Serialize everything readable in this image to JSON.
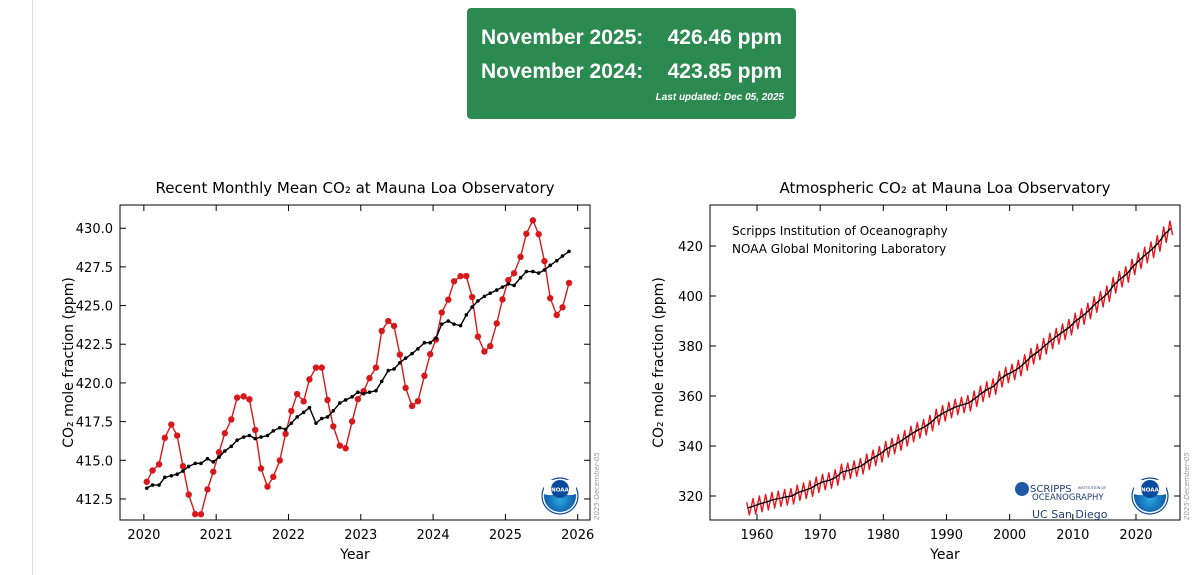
{
  "banner": {
    "rows": [
      {
        "label": "November 2025:",
        "value": "426.46 ppm"
      },
      {
        "label": "November 2024:",
        "value": "423.85 ppm"
      }
    ],
    "updated": "Last updated: Dec 05, 2025"
  },
  "chart_data": [
    {
      "type": "line",
      "title": "Recent Monthly Mean CO₂ at Mauna Loa Observatory",
      "x_label": "Year",
      "y_label": "CO₂ mole fraction (ppm)",
      "stamp": "2025-December-05",
      "logo": "NOAA",
      "xlim": [
        2019.67,
        2026.17
      ],
      "ylim": [
        411.14,
        431.5
      ],
      "xticks": [
        2020,
        2021,
        2022,
        2023,
        2024,
        2025,
        2026
      ],
      "yticks": [
        412.5,
        {
          "value": 415,
          "label": "415.0"
        },
        417.5,
        {
          "value": 420,
          "label": "420.0"
        },
        422.5,
        {
          "value": 425,
          "label": "425.0"
        },
        427.5,
        {
          "value": 430,
          "label": "430.0"
        }
      ],
      "x": [
        2020.04,
        2020.12,
        2020.21,
        2020.29,
        2020.38,
        2020.46,
        2020.54,
        2020.62,
        2020.71,
        2020.79,
        2020.88,
        2020.96,
        2021.04,
        2021.12,
        2021.21,
        2021.29,
        2021.38,
        2021.46,
        2021.54,
        2021.62,
        2021.71,
        2021.79,
        2021.88,
        2021.96,
        2022.04,
        2022.12,
        2022.21,
        2022.29,
        2022.38,
        2022.46,
        2022.54,
        2022.62,
        2022.71,
        2022.79,
        2022.88,
        2022.96,
        2023.04,
        2023.12,
        2023.21,
        2023.29,
        2023.38,
        2023.46,
        2023.54,
        2023.62,
        2023.71,
        2023.79,
        2023.88,
        2023.96,
        2024.04,
        2024.12,
        2024.21,
        2024.29,
        2024.38,
        2024.46,
        2024.54,
        2024.62,
        2024.71,
        2024.79,
        2024.88,
        2024.96,
        2025.04,
        2025.12,
        2025.21,
        2025.29,
        2025.38,
        2025.46,
        2025.54,
        2025.62,
        2025.71,
        2025.79,
        2025.88
      ],
      "series": [
        {
          "color": "#d7191c",
          "marker": "o",
          "values": [
            413.61,
            414.34,
            414.74,
            416.45,
            417.31,
            416.6,
            414.62,
            412.78,
            411.52,
            411.51,
            413.12,
            414.26,
            415.52,
            416.75,
            417.64,
            419.05,
            419.13,
            418.94,
            416.96,
            414.47,
            413.3,
            413.93,
            414.99,
            416.71,
            418.19,
            419.28,
            418.81,
            420.23,
            420.99,
            420.99,
            418.9,
            417.19,
            415.95,
            415.78,
            417.51,
            418.95,
            419.47,
            420.31,
            420.99,
            423.36,
            424.0,
            423.68,
            421.83,
            419.68,
            418.51,
            418.82,
            420.46,
            421.86,
            422.8,
            424.55,
            425.38,
            426.57,
            426.9,
            426.91,
            425.55,
            422.99,
            422.03,
            422.38,
            423.85,
            425.4,
            426.65,
            427.09,
            428.15,
            429.64,
            430.51,
            429.61,
            427.87,
            425.48,
            424.39,
            424.89,
            426.46
          ]
        },
        {
          "color": "#000000",
          "marker": ".",
          "values": [
            413.2,
            413.4,
            413.4,
            413.9,
            414.0,
            414.1,
            414.3,
            414.6,
            414.8,
            414.8,
            415.1,
            414.9,
            415.2,
            415.6,
            415.9,
            416.3,
            416.5,
            416.6,
            416.4,
            416.5,
            416.6,
            416.9,
            417.1,
            417.0,
            417.4,
            417.8,
            418.1,
            418.4,
            417.4,
            417.7,
            417.8,
            418.2,
            418.7,
            418.9,
            419.1,
            419.4,
            419.3,
            419.4,
            419.5,
            420.1,
            420.8,
            420.9,
            421.3,
            421.6,
            421.9,
            422.2,
            422.6,
            422.6,
            422.9,
            423.8,
            424.0,
            423.8,
            423.7,
            424.4,
            424.9,
            425.3,
            425.6,
            425.8,
            426.0,
            426.2,
            426.4,
            426.3,
            426.8,
            427.2,
            427.2,
            427.1,
            427.3,
            427.6,
            427.9,
            428.2,
            428.5
          ]
        }
      ]
    },
    {
      "type": "line",
      "title": "Atmospheric CO₂ at Mauna Loa Observatory",
      "x_label": "Year",
      "y_label": "CO₂ mole fraction (ppm)",
      "stamp": "2025-December-05",
      "logo": "NOAA",
      "annotations": [
        "Scripps Institution of Oceanography",
        "NOAA Global Monitoring Laboratory"
      ],
      "logo_texts": [
        "SCRIPPS",
        "INSTITUTION OF",
        "OCEANOGRAPHY",
        "UC San Diego"
      ],
      "xlim": [
        1952.56,
        2026.97
      ],
      "ylim": [
        310.4,
        436.4
      ],
      "xticks": [
        1960,
        1970,
        1980,
        1990,
        2000,
        2010,
        2020
      ],
      "yticks": [
        320,
        340,
        360,
        380,
        400,
        420
      ],
      "series": [
        {
          "color": "#e8141c",
          "x": [
            1958.38,
            1958.79,
            1959.38,
            1959.79,
            1960.38,
            1960.79,
            1961.38,
            1961.79,
            1962.38,
            1962.79,
            1963.38,
            1963.79,
            1964.38,
            1964.79,
            1965.38,
            1965.79,
            1966.38,
            1966.79,
            1967.38,
            1967.79,
            1968.38,
            1968.79,
            1969.38,
            1969.79,
            1970.38,
            1970.79,
            1971.38,
            1971.79,
            1972.38,
            1972.79,
            1973.38,
            1973.79,
            1974.38,
            1974.79,
            1975.38,
            1975.79,
            1976.38,
            1976.79,
            1977.38,
            1977.79,
            1978.38,
            1978.79,
            1979.38,
            1979.79,
            1980.38,
            1980.79,
            1981.38,
            1981.79,
            1982.38,
            1982.79,
            1983.38,
            1983.79,
            1984.38,
            1984.79,
            1985.38,
            1985.79,
            1986.38,
            1986.79,
            1987.38,
            1987.79,
            1988.38,
            1988.79,
            1989.38,
            1989.79,
            1990.38,
            1990.79,
            1991.38,
            1991.79,
            1992.38,
            1992.79,
            1993.38,
            1993.79,
            1994.38,
            1994.79,
            1995.38,
            1995.79,
            1996.38,
            1996.79,
            1997.38,
            1997.79,
            1998.38,
            1998.79,
            1999.38,
            1999.79,
            2000.38,
            2000.79,
            2001.38,
            2001.79,
            2002.38,
            2002.79,
            2003.38,
            2003.79,
            2004.38,
            2004.79,
            2005.38,
            2005.79,
            2006.38,
            2006.79,
            2007.38,
            2007.79,
            2008.38,
            2008.79,
            2009.38,
            2009.79,
            2010.38,
            2010.79,
            2011.38,
            2011.79,
            2012.38,
            2012.79,
            2013.38,
            2013.79,
            2014.38,
            2014.79,
            2015.38,
            2015.79,
            2016.38,
            2016.79,
            2017.38,
            2017.79,
            2018.38,
            2018.79,
            2019.38,
            2019.79,
            2020.38,
            2020.79,
            2021.38,
            2021.79,
            2022.38,
            2022.79,
            2023.38,
            2023.79,
            2024.38,
            2024.79,
            2025.38,
            2025.79
          ],
          "values": [
            317.5,
            312.4,
            319.0,
            312.8,
            320.0,
            313.7,
            320.6,
            314.4,
            321.5,
            315.2,
            322.0,
            315.8,
            322.6,
            316.4,
            323.0,
            316.8,
            324.4,
            318.2,
            325.2,
            319.0,
            326.1,
            319.9,
            327.6,
            321.4,
            328.7,
            322.5,
            329.3,
            323.1,
            330.5,
            324.3,
            332.7,
            326.5,
            333.2,
            327.0,
            334.1,
            327.9,
            335.0,
            328.8,
            336.8,
            330.6,
            338.4,
            332.2,
            339.8,
            333.6,
            341.8,
            335.6,
            343.1,
            336.9,
            344.5,
            338.3,
            346.2,
            340.0,
            347.9,
            341.7,
            349.4,
            343.2,
            350.6,
            344.4,
            352.3,
            346.1,
            354.7,
            348.5,
            356.2,
            350.0,
            357.5,
            351.3,
            358.7,
            352.5,
            359.5,
            353.3,
            360.2,
            354.0,
            362.0,
            355.8,
            364.0,
            357.8,
            365.7,
            359.5,
            366.9,
            360.7,
            369.8,
            363.6,
            371.5,
            365.3,
            372.7,
            366.5,
            374.3,
            368.1,
            376.5,
            370.3,
            379.0,
            372.8,
            380.7,
            374.5,
            383.0,
            376.8,
            385.1,
            378.9,
            387.0,
            380.8,
            388.8,
            382.6,
            390.6,
            384.4,
            393.1,
            386.9,
            394.9,
            388.7,
            397.1,
            390.9,
            399.7,
            393.5,
            401.8,
            395.6,
            404.0,
            397.8,
            407.4,
            401.2,
            409.8,
            403.6,
            411.7,
            405.5,
            414.7,
            408.5,
            417.2,
            411.0,
            419.5,
            413.3,
            421.6,
            415.4,
            424.1,
            417.9,
            427.6,
            421.4,
            430.0,
            424.4
          ]
        },
        {
          "color": "#000000",
          "x": [
            1958.5,
            1959.5,
            1960.5,
            1961.5,
            1962.5,
            1963.5,
            1964.5,
            1965.5,
            1966.5,
            1967.5,
            1968.5,
            1969.5,
            1970.5,
            1971.5,
            1972.5,
            1973.5,
            1974.5,
            1975.5,
            1976.5,
            1977.5,
            1978.5,
            1979.5,
            1980.5,
            1981.5,
            1982.5,
            1983.5,
            1984.5,
            1985.5,
            1986.5,
            1987.5,
            1988.5,
            1989.5,
            1990.5,
            1991.5,
            1992.5,
            1993.5,
            1994.5,
            1995.5,
            1996.5,
            1997.5,
            1998.5,
            1999.5,
            2000.5,
            2001.5,
            2002.5,
            2003.5,
            2004.5,
            2005.5,
            2006.5,
            2007.5,
            2008.5,
            2009.5,
            2010.5,
            2011.5,
            2012.5,
            2013.5,
            2014.5,
            2015.5,
            2016.5,
            2017.5,
            2018.5,
            2019.5,
            2020.5,
            2021.5,
            2022.5,
            2023.5,
            2024.5,
            2025.5
          ],
          "values": [
            315.2,
            316.0,
            316.9,
            317.6,
            318.5,
            319.0,
            319.6,
            320.0,
            321.4,
            322.2,
            323.1,
            324.6,
            325.7,
            326.3,
            327.5,
            329.7,
            330.2,
            331.1,
            332.0,
            333.8,
            335.4,
            336.8,
            338.8,
            340.1,
            341.5,
            343.2,
            344.9,
            346.4,
            347.6,
            349.3,
            351.7,
            353.2,
            354.5,
            355.7,
            356.5,
            357.2,
            359.0,
            361.0,
            362.7,
            363.9,
            366.8,
            368.5,
            369.7,
            371.3,
            373.5,
            376.0,
            377.7,
            380.0,
            382.1,
            384.0,
            385.8,
            387.6,
            390.1,
            391.9,
            394.1,
            396.7,
            398.8,
            401.0,
            404.4,
            406.8,
            408.7,
            411.7,
            414.2,
            416.5,
            418.6,
            421.1,
            424.6,
            427.0
          ]
        }
      ]
    }
  ]
}
